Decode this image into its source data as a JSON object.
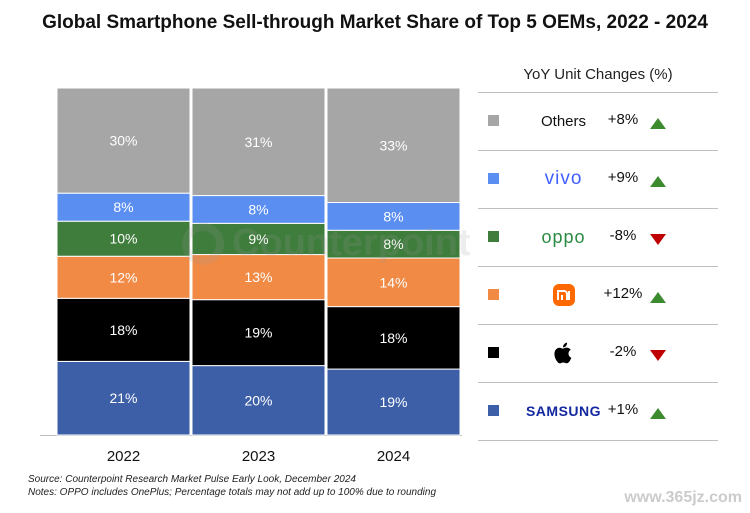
{
  "chart_data": {
    "type": "bar",
    "stacked": true,
    "normalized_percent": true,
    "title": "Global Smartphone Sell-through Market Share of Top 5 OEMs, 2022 - 2024",
    "categories": [
      "2022",
      "2023",
      "2024"
    ],
    "series": [
      {
        "key": "samsung",
        "color": "#3c5fa8",
        "values": [
          21,
          20,
          19
        ],
        "labels": [
          "21%",
          "20%",
          "19%"
        ]
      },
      {
        "key": "apple",
        "color": "#000000",
        "values": [
          18,
          19,
          18
        ],
        "labels": [
          "18%",
          "19%",
          "18%"
        ]
      },
      {
        "key": "xiaomi",
        "color": "#f08a45",
        "values": [
          12,
          13,
          14
        ],
        "labels": [
          "12%",
          "13%",
          "14%"
        ]
      },
      {
        "key": "oppo",
        "color": "#3f7d3c",
        "values": [
          10,
          9,
          8
        ],
        "labels": [
          "10%",
          "9%",
          "8%"
        ]
      },
      {
        "key": "vivo",
        "color": "#5a8ef0",
        "values": [
          8,
          8,
          8
        ],
        "labels": [
          "8%",
          "8%",
          "8%"
        ]
      },
      {
        "name": "Others",
        "key": "others",
        "color": "#a6a6a6",
        "values": [
          30,
          31,
          33
        ],
        "labels": [
          "30%",
          "31%",
          "33%"
        ]
      }
    ],
    "legend_title": "YoY Unit Changes (%)",
    "yoy_changes": [
      {
        "key": "others",
        "label": "Others",
        "change": "+8%",
        "direction": "up"
      },
      {
        "key": "vivo",
        "label": "vivo",
        "change": "+9%",
        "direction": "up"
      },
      {
        "key": "oppo",
        "label": "oppo",
        "change": "-8%",
        "direction": "down"
      },
      {
        "key": "xiaomi",
        "label": "mi",
        "change": "+12%",
        "direction": "up"
      },
      {
        "key": "apple",
        "label": "",
        "change": "-2%",
        "direction": "down"
      },
      {
        "key": "samsung",
        "label": "SAMSUNG",
        "change": "+1%",
        "direction": "up"
      }
    ],
    "legend_placement": "right",
    "grid": false
  },
  "watermark": "Counterpoint",
  "footnote": {
    "source": "Source: Counterpoint Research Market Pulse Early Look, December 2024",
    "notes": "Notes: OPPO includes OnePlus; Percentage totals may not add up to 100% due to rounding"
  },
  "site_mark": "www.365jz.com",
  "colors": {
    "up_arrow": "#3d8b2f",
    "down_arrow": "#c00000",
    "text_dark": "#111111",
    "text_light": "#ffffff"
  },
  "icons": {
    "apple": "apple-logo-icon",
    "xiaomi": "mi-logo-icon"
  }
}
